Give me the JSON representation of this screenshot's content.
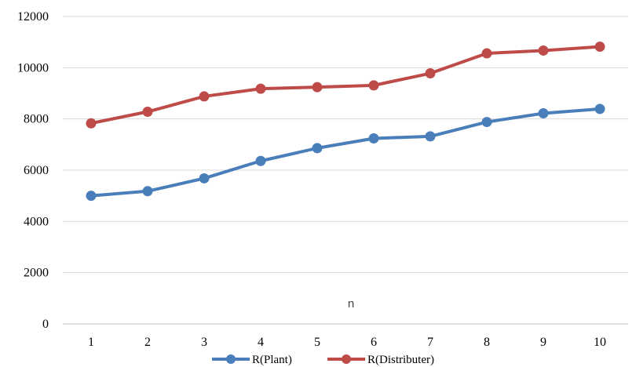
{
  "chart_data": {
    "type": "line",
    "title": "",
    "xlabel": "n",
    "ylabel": "",
    "categories": [
      "1",
      "2",
      "3",
      "4",
      "5",
      "6",
      "7",
      "8",
      "9",
      "10"
    ],
    "ylim": [
      0,
      12000
    ],
    "yticks": [
      0,
      2000,
      4000,
      6000,
      8000,
      10000,
      12000
    ],
    "grid": "horizontal",
    "legend_position": "bottom",
    "series": [
      {
        "name": "R(Plant)",
        "color": "#4a7ebb",
        "values": [
          5000,
          5180,
          5680,
          6360,
          6860,
          7240,
          7320,
          7880,
          8220,
          8390
        ]
      },
      {
        "name": "R(Distributer)",
        "color": "#be4b48",
        "values": [
          7830,
          8280,
          8880,
          9180,
          9240,
          9310,
          9780,
          10560,
          10670,
          10820
        ]
      }
    ]
  }
}
